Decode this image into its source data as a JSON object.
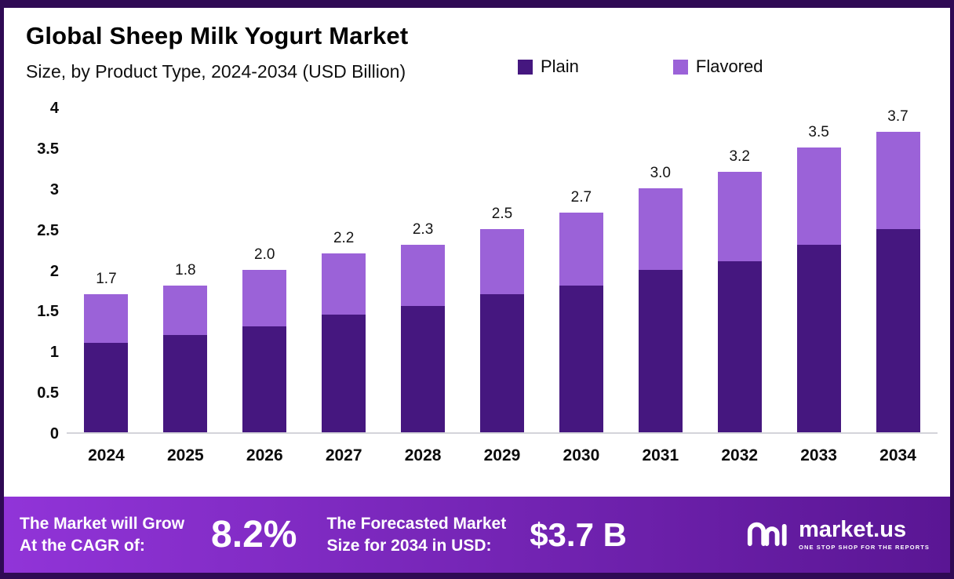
{
  "page": {
    "frame_color": "#2f0a54",
    "banner_gradient": [
      "#9134d8",
      "#5a1694"
    ]
  },
  "chart_data": {
    "type": "bar",
    "stacked": true,
    "title": "Global Sheep Milk Yogurt Market",
    "subtitle": "Size, by Product Type, 2024-2034 (USD Billion)",
    "categories": [
      "2024",
      "2025",
      "2026",
      "2027",
      "2028",
      "2029",
      "2030",
      "2031",
      "2032",
      "2033",
      "2034"
    ],
    "series": [
      {
        "name": "Plain",
        "color": "#45177f",
        "values": [
          1.1,
          1.2,
          1.3,
          1.45,
          1.55,
          1.7,
          1.8,
          2.0,
          2.1,
          2.3,
          2.5
        ]
      },
      {
        "name": "Flavored",
        "color": "#9b62d8",
        "values": [
          0.6,
          0.6,
          0.7,
          0.75,
          0.75,
          0.8,
          0.9,
          1.0,
          1.1,
          1.2,
          1.2
        ]
      }
    ],
    "totals": [
      "1.7",
      "1.8",
      "2.0",
      "2.2",
      "2.3",
      "2.5",
      "2.7",
      "3.0",
      "3.2",
      "3.5",
      "3.7"
    ],
    "ylim": [
      0,
      4
    ],
    "yticks": [
      "4",
      "3.5",
      "3",
      "2.5",
      "2",
      "1.5",
      "1",
      "0.5",
      "0"
    ],
    "legend_position": "top",
    "grid": false
  },
  "footer": {
    "growth_line1": "The Market will Grow",
    "growth_line2": "At the CAGR of:",
    "cagr_value": "8.2%",
    "forecast_line1": "The Forecasted Market",
    "forecast_line2": "Size for 2034 in USD:",
    "forecast_value": "$3.7 B",
    "brand_name": "market.us",
    "brand_tagline": "ONE STOP SHOP FOR THE REPORTS"
  }
}
